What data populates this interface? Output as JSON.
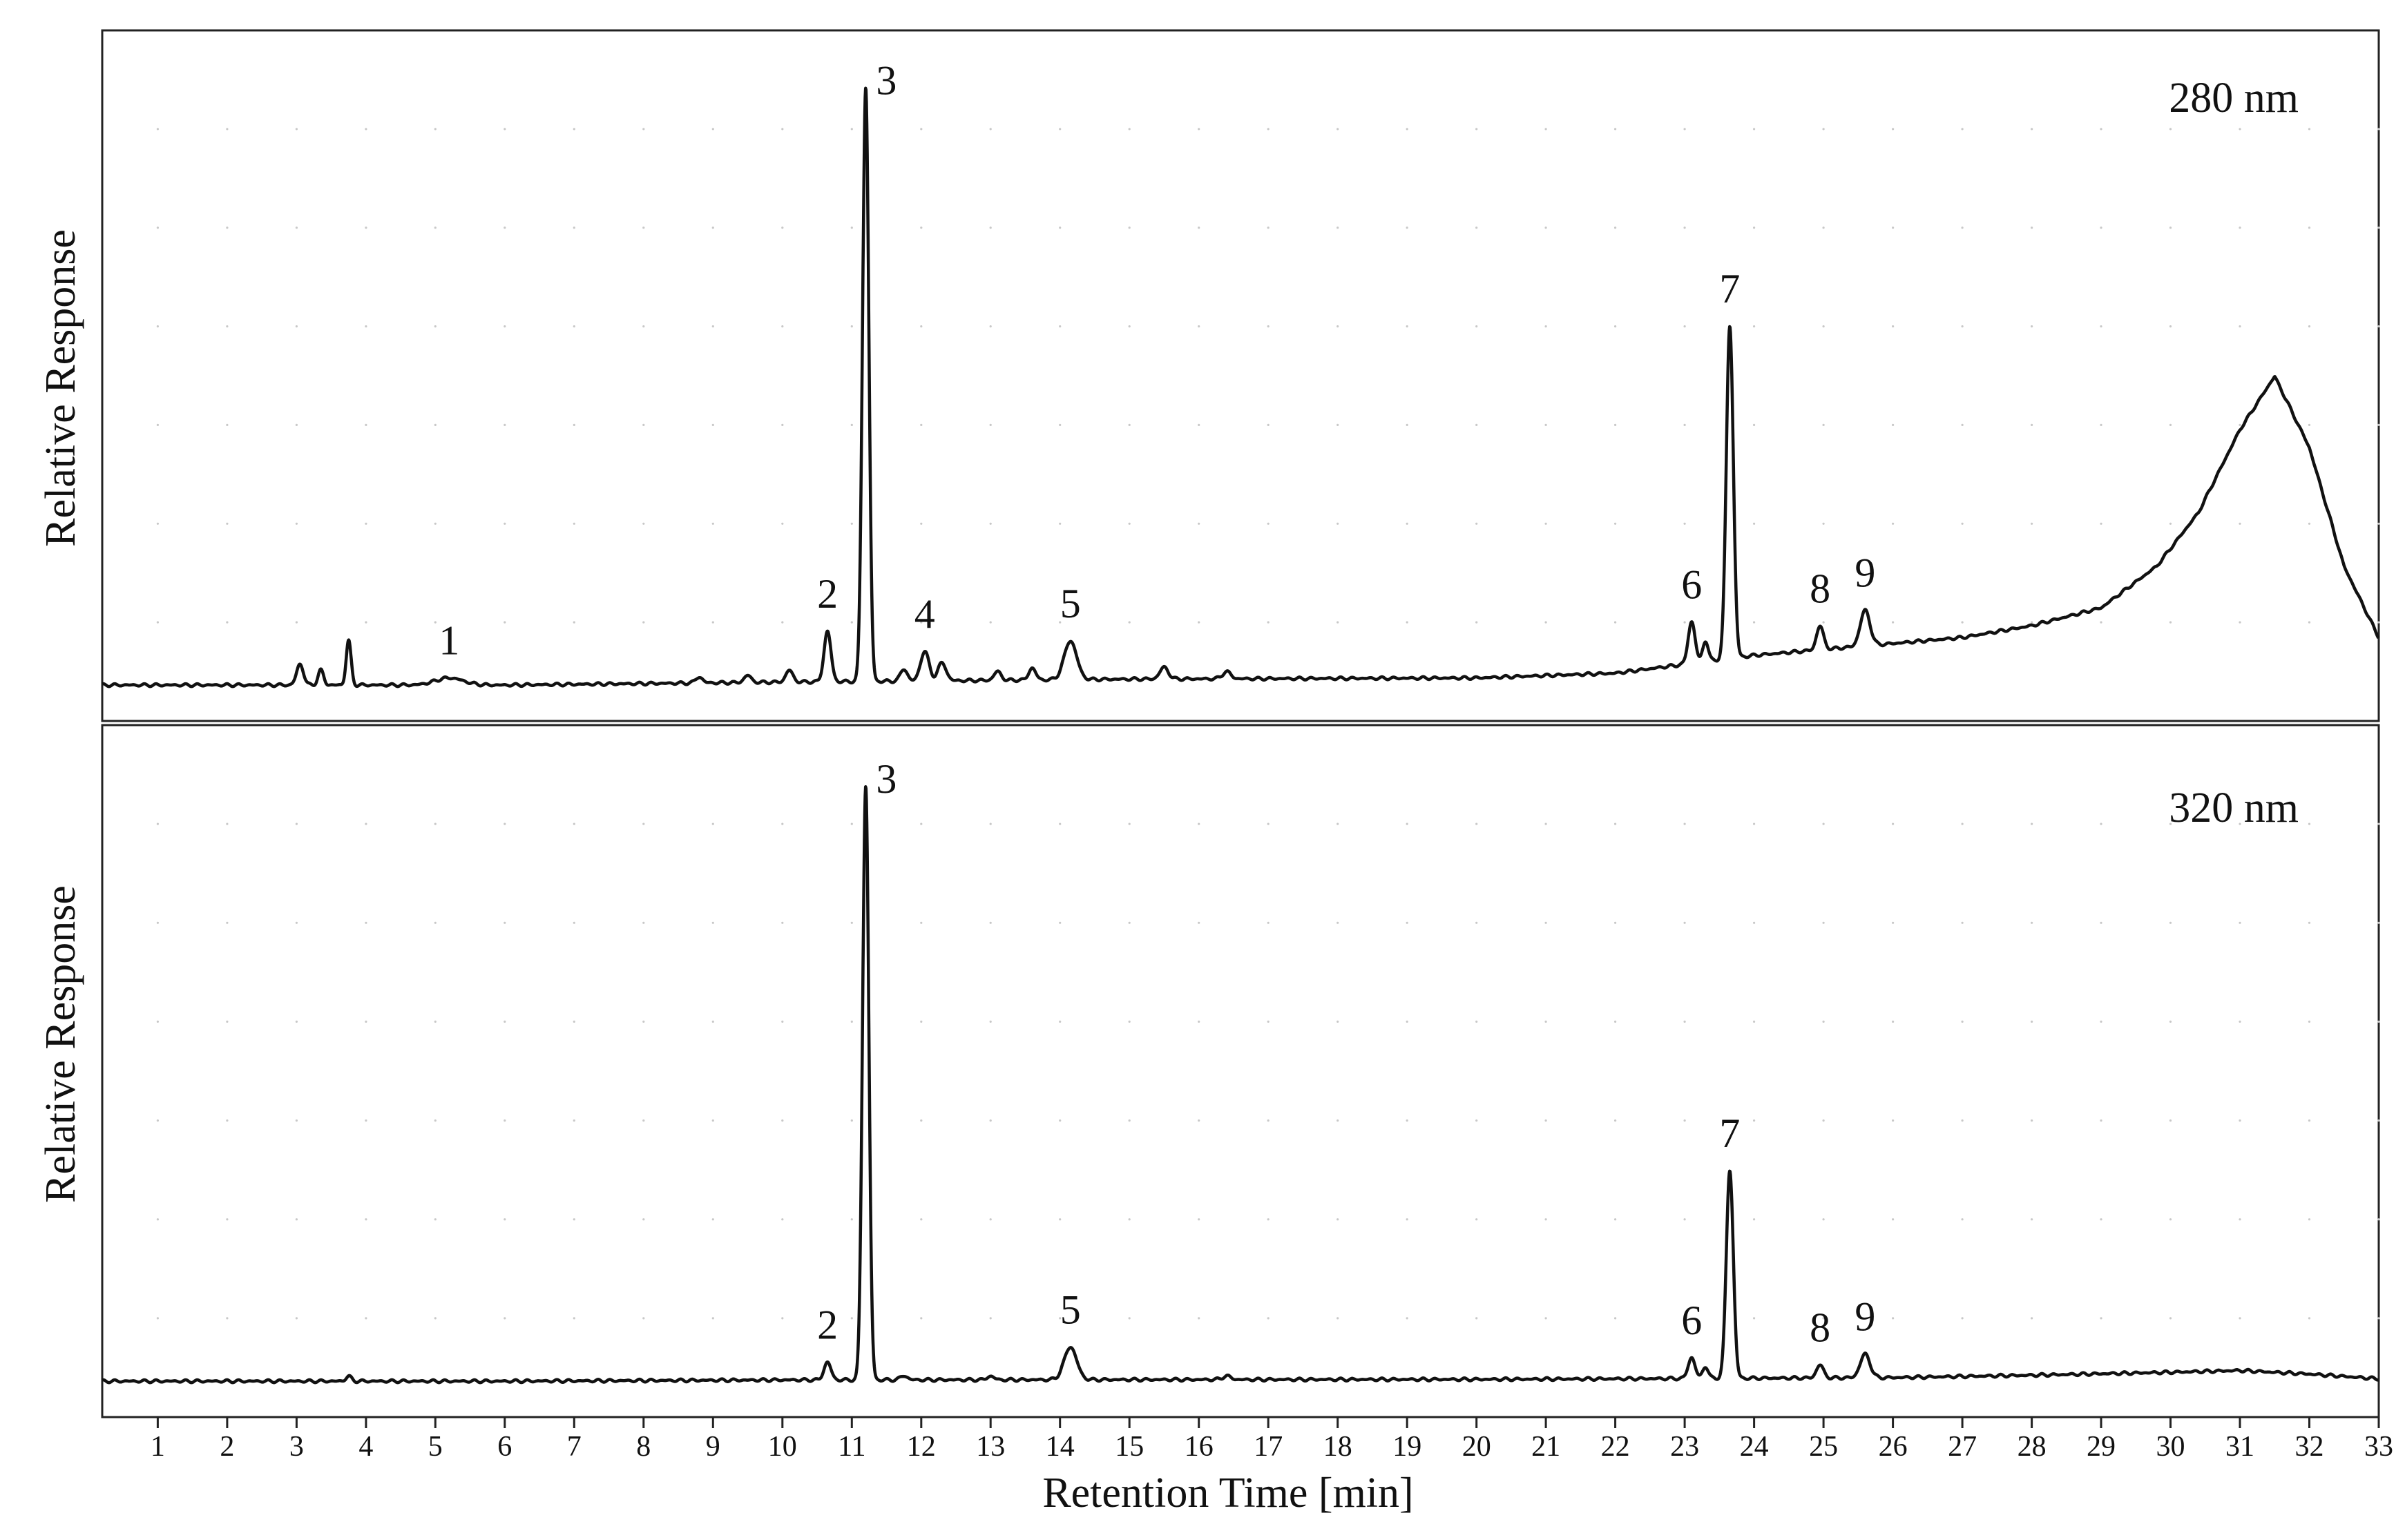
{
  "chart_data": {
    "type": "line",
    "xlabel": "Retention Time [min]",
    "ylabel": "Relative Response",
    "xlim": [
      0.2,
      33
    ],
    "x_ticks": [
      1,
      2,
      3,
      4,
      5,
      6,
      7,
      8,
      9,
      10,
      11,
      12,
      13,
      14,
      15,
      16,
      17,
      18,
      19,
      20,
      21,
      22,
      23,
      24,
      25,
      26,
      27,
      28,
      29,
      30,
      31,
      32,
      33
    ],
    "x_tick_labels": [
      "1",
      "2",
      "3",
      "4",
      "5",
      "6",
      "7",
      "8",
      "9",
      "10",
      "11",
      "12",
      "13",
      "14",
      "15",
      "16",
      "17",
      "18",
      "19",
      "20",
      "21",
      "22",
      "23",
      "24",
      "25",
      "26",
      "27",
      "28",
      "29",
      "30",
      "31",
      "32",
      "33"
    ],
    "grid": "dotted",
    "panels": [
      {
        "name": "280 nm",
        "wavelength_label": "280 nm",
        "ylim": [
          0,
          1.1
        ],
        "baseline": 0.0,
        "baseline_profile": [
          [
            0.2,
            0.0
          ],
          [
            2.9,
            0.0
          ],
          [
            6,
            0.0
          ],
          [
            10,
            0.005
          ],
          [
            15,
            0.01
          ],
          [
            20,
            0.012
          ],
          [
            22,
            0.02
          ],
          [
            24,
            0.05
          ],
          [
            26,
            0.07
          ],
          [
            27,
            0.08
          ],
          [
            28,
            0.1
          ],
          [
            29,
            0.13
          ],
          [
            29.8,
            0.2
          ],
          [
            30.4,
            0.29
          ],
          [
            31.0,
            0.43
          ],
          [
            31.5,
            0.52
          ],
          [
            32.0,
            0.4
          ],
          [
            32.5,
            0.2
          ],
          [
            33,
            0.08
          ]
        ],
        "peaks": [
          {
            "rt": 3.05,
            "height": 0.035,
            "width": 0.05
          },
          {
            "rt": 3.35,
            "height": 0.025,
            "width": 0.04
          },
          {
            "rt": 3.75,
            "height": 0.075,
            "width": 0.035
          },
          {
            "rt": 5.2,
            "height": 0.012,
            "width": 0.2,
            "label": "1"
          },
          {
            "rt": 8.8,
            "height": 0.01,
            "width": 0.05
          },
          {
            "rt": 9.5,
            "height": 0.012,
            "width": 0.05
          },
          {
            "rt": 10.1,
            "height": 0.02,
            "width": 0.05
          },
          {
            "rt": 10.65,
            "height": 0.085,
            "width": 0.05,
            "label": "2"
          },
          {
            "rt": 11.2,
            "height": 1.0,
            "width": 0.045,
            "label": "3"
          },
          {
            "rt": 11.75,
            "height": 0.02,
            "width": 0.05
          },
          {
            "rt": 12.05,
            "height": 0.05,
            "width": 0.06,
            "label": "4"
          },
          {
            "rt": 12.3,
            "height": 0.03,
            "width": 0.06
          },
          {
            "rt": 13.1,
            "height": 0.015,
            "width": 0.05
          },
          {
            "rt": 13.6,
            "height": 0.02,
            "width": 0.05
          },
          {
            "rt": 14.15,
            "height": 0.065,
            "width": 0.09,
            "label": "5"
          },
          {
            "rt": 15.5,
            "height": 0.02,
            "width": 0.06
          },
          {
            "rt": 16.4,
            "height": 0.012,
            "width": 0.06
          },
          {
            "rt": 23.1,
            "height": 0.07,
            "width": 0.05,
            "label": "6"
          },
          {
            "rt": 23.3,
            "height": 0.035,
            "width": 0.04
          },
          {
            "rt": 23.65,
            "height": 0.56,
            "width": 0.05,
            "label": "7"
          },
          {
            "rt": 24.95,
            "height": 0.04,
            "width": 0.05,
            "label": "8"
          },
          {
            "rt": 25.6,
            "height": 0.06,
            "width": 0.07,
            "label": "9"
          }
        ]
      },
      {
        "name": "320 nm",
        "wavelength_label": "320 nm",
        "ylim": [
          0,
          1.1
        ],
        "baseline": 0.0,
        "baseline_profile": [
          [
            0.2,
            0.0
          ],
          [
            6,
            0.0
          ],
          [
            10,
            0.002
          ],
          [
            20,
            0.003
          ],
          [
            26,
            0.006
          ],
          [
            28,
            0.01
          ],
          [
            30,
            0.015
          ],
          [
            31,
            0.018
          ],
          [
            32,
            0.012
          ],
          [
            33,
            0.004
          ]
        ],
        "peaks": [
          {
            "rt": 3.75,
            "height": 0.008,
            "width": 0.04
          },
          {
            "rt": 10.65,
            "height": 0.03,
            "width": 0.05,
            "label": "2"
          },
          {
            "rt": 11.2,
            "height": 1.0,
            "width": 0.045,
            "label": "3"
          },
          {
            "rt": 11.75,
            "height": 0.007,
            "width": 0.05
          },
          {
            "rt": 13.0,
            "height": 0.006,
            "width": 0.05
          },
          {
            "rt": 14.15,
            "height": 0.055,
            "width": 0.09,
            "label": "5"
          },
          {
            "rt": 16.4,
            "height": 0.006,
            "width": 0.06
          },
          {
            "rt": 23.1,
            "height": 0.035,
            "width": 0.05,
            "label": "6"
          },
          {
            "rt": 23.3,
            "height": 0.02,
            "width": 0.04
          },
          {
            "rt": 23.65,
            "height": 0.35,
            "width": 0.05,
            "label": "7"
          },
          {
            "rt": 24.95,
            "height": 0.022,
            "width": 0.05,
            "label": "8"
          },
          {
            "rt": 25.6,
            "height": 0.04,
            "width": 0.07,
            "label": "9"
          }
        ]
      }
    ]
  }
}
